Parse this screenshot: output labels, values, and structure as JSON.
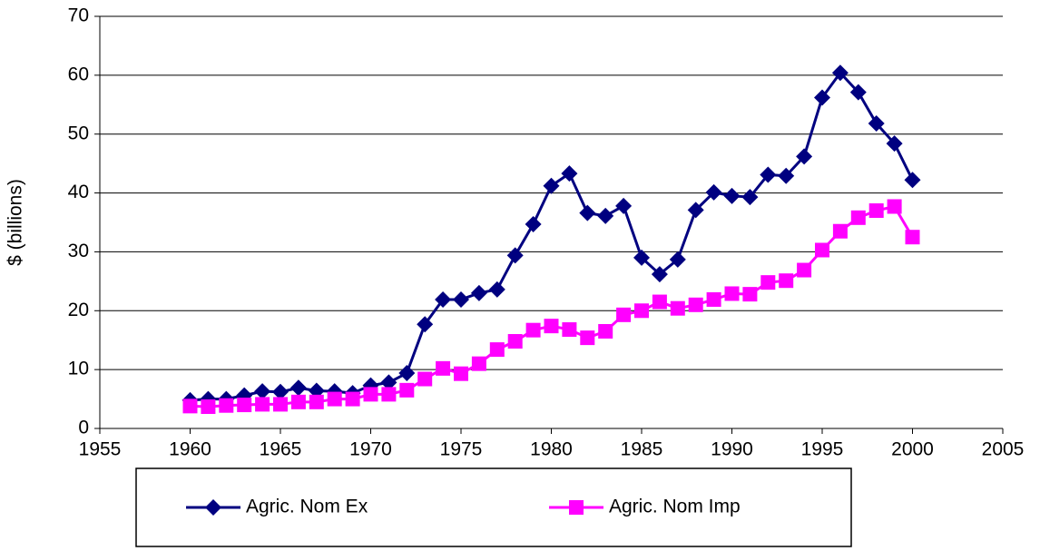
{
  "chart_data": {
    "type": "line",
    "y_label": "$ (billions)",
    "x": [
      1960,
      1961,
      1962,
      1963,
      1964,
      1965,
      1966,
      1967,
      1968,
      1969,
      1970,
      1971,
      1972,
      1973,
      1974,
      1975,
      1976,
      1977,
      1978,
      1979,
      1980,
      1981,
      1982,
      1983,
      1984,
      1985,
      1986,
      1987,
      1988,
      1989,
      1990,
      1991,
      1992,
      1993,
      1994,
      1995,
      1996,
      1997,
      1998,
      1999,
      2000
    ],
    "series": [
      {
        "name": "Agric. Nom Ex",
        "color": "#000080",
        "marker": "diamond",
        "values": [
          4.8,
          5.0,
          5.0,
          5.6,
          6.3,
          6.2,
          6.9,
          6.4,
          6.3,
          6.0,
          7.3,
          7.8,
          9.4,
          17.7,
          21.9,
          21.9,
          23.0,
          23.6,
          29.4,
          34.7,
          41.2,
          43.3,
          36.6,
          36.1,
          37.8,
          29.0,
          26.2,
          28.7,
          37.1,
          40.1,
          39.5,
          39.3,
          43.1,
          42.9,
          46.2,
          56.2,
          60.4,
          57.1,
          51.8,
          48.4,
          42.2
        ]
      },
      {
        "name": "Agric. Nom Imp",
        "color": "#ff00ff",
        "marker": "square",
        "values": [
          3.8,
          3.7,
          3.9,
          4.0,
          4.1,
          4.1,
          4.5,
          4.5,
          5.0,
          5.0,
          5.8,
          5.8,
          6.5,
          8.4,
          10.2,
          9.3,
          11.0,
          13.4,
          14.8,
          16.7,
          17.4,
          16.8,
          15.4,
          16.5,
          19.3,
          20.0,
          21.5,
          20.4,
          21.0,
          21.9,
          22.9,
          22.8,
          24.8,
          25.1,
          26.9,
          30.3,
          33.5,
          35.8,
          37.0,
          37.7,
          32.5
        ]
      }
    ],
    "xlim": [
      1955,
      2005
    ],
    "xticks": [
      1955,
      1960,
      1965,
      1970,
      1975,
      1980,
      1985,
      1990,
      1995,
      2000,
      2005
    ],
    "ylim": [
      0,
      70
    ],
    "yticks": [
      0,
      10,
      20,
      30,
      40,
      50,
      60,
      70
    ],
    "grid": true,
    "legend": "bottom"
  }
}
